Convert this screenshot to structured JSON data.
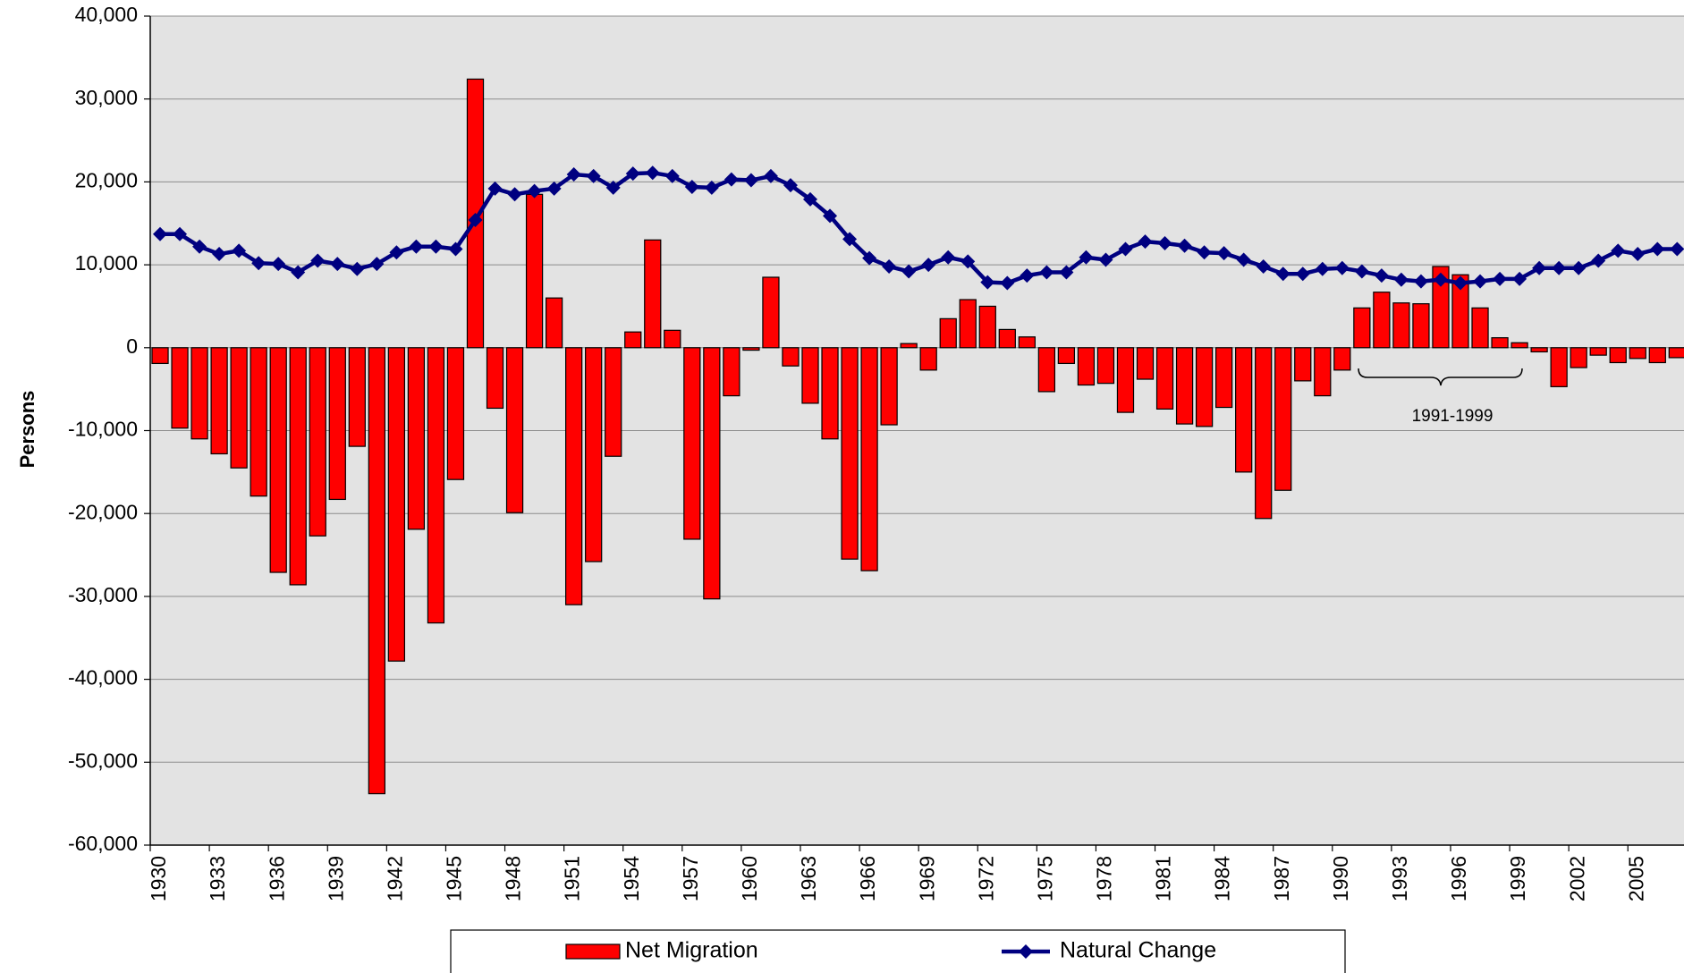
{
  "chart_data": {
    "type": "bar_line",
    "y_axis_label": "Persons",
    "categories": [
      1930,
      null,
      null,
      1933,
      null,
      null,
      1936,
      null,
      null,
      1939,
      null,
      null,
      1942,
      null,
      null,
      1945,
      null,
      null,
      1948,
      null,
      null,
      1951,
      null,
      null,
      1954,
      null,
      null,
      1957,
      null,
      null,
      1960,
      null,
      null,
      1963,
      null,
      null,
      1966,
      null,
      null,
      1969,
      null,
      null,
      1972,
      null,
      null,
      1975,
      null,
      null,
      1978,
      null,
      null,
      1981,
      null,
      null,
      1984,
      null,
      null,
      1987,
      null,
      null,
      1990,
      null,
      null,
      1993,
      null,
      null,
      1996,
      null,
      null,
      1999,
      null,
      null,
      2002,
      null,
      null,
      2005,
      null,
      null
    ],
    "series": [
      {
        "name": "Net Migration",
        "kind": "bar",
        "color": "#ff0000",
        "values": [
          -1900,
          -9700,
          -11000,
          -12800,
          -14500,
          -17900,
          -27100,
          -28600,
          -22700,
          -18300,
          -11900,
          -53800,
          -37800,
          -21900,
          -33200,
          -15900,
          32400,
          -7300,
          -19900,
          18500,
          6000,
          -31000,
          -25800,
          -13100,
          1900,
          13000,
          2100,
          -23100,
          -30300,
          -5800,
          -300,
          8500,
          -2200,
          -6700,
          -11000,
          -25500,
          -26900,
          -9300,
          500,
          -2700,
          3500,
          5800,
          5000,
          2200,
          1300,
          -5300,
          -1900,
          -4500,
          -4300,
          -7800,
          -3800,
          -7400,
          -9200,
          -9500,
          -7200,
          -15000,
          -20600,
          -17200,
          -4000,
          -5800,
          -2700,
          4800,
          6700,
          5400,
          5300,
          9800,
          8800,
          4800,
          1200,
          600,
          -500,
          -4700,
          -2400,
          -900,
          -1800,
          -1300,
          -1800,
          -1200
        ]
      },
      {
        "name": "Natural Change",
        "kind": "line",
        "color": "#000080",
        "values": [
          13700,
          13700,
          12200,
          11300,
          11700,
          10200,
          10100,
          9100,
          10500,
          10100,
          9500,
          10100,
          11500,
          12200,
          12200,
          11900,
          15400,
          19200,
          18500,
          18900,
          19200,
          20900,
          20700,
          19300,
          21000,
          21100,
          20700,
          19400,
          19300,
          20300,
          20200,
          20700,
          19600,
          17900,
          15900,
          13100,
          10800,
          9800,
          9200,
          10000,
          10900,
          10400,
          7900,
          7800,
          8700,
          9100,
          9100,
          10900,
          10600,
          11900,
          12800,
          12600,
          12300,
          11500,
          11400,
          10600,
          9800,
          8900,
          8900,
          9500,
          9600,
          9200,
          8700,
          8200,
          8000,
          8200,
          7800,
          8000,
          8300,
          8300,
          9600,
          9600,
          9600,
          10500,
          11700,
          11300,
          11900,
          11900
        ]
      }
    ],
    "annotation": "1991-1999",
    "ylim": [
      -60000,
      40000
    ],
    "yticks": [
      {
        "value": -60000,
        "label": "-60,000"
      },
      {
        "value": -50000,
        "label": "-50,000"
      },
      {
        "value": -40000,
        "label": "-40,000"
      },
      {
        "value": -30000,
        "label": "-30,000"
      },
      {
        "value": -20000,
        "label": "-20,000"
      },
      {
        "value": -10000,
        "label": "-10,000"
      },
      0,
      {
        "value": 10000,
        "label": "10,000"
      },
      {
        "value": 20000,
        "label": "20,000"
      },
      {
        "value": 30000,
        "label": "30,000"
      },
      {
        "value": 40000,
        "label": "40,000"
      }
    ],
    "grid": true,
    "legend": "bottom"
  }
}
